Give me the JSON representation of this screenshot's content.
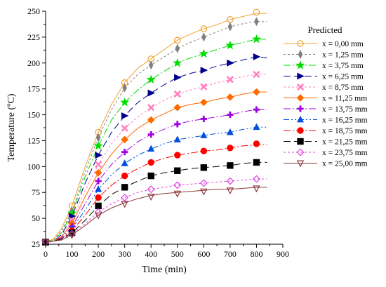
{
  "chart_data": {
    "type": "line",
    "xlabel": "Time (min)",
    "ylabel": "Temperature (ºC)",
    "xlim": [
      0,
      900
    ],
    "ylim": [
      25,
      250
    ],
    "xticks": [
      0,
      100,
      200,
      300,
      400,
      500,
      600,
      700,
      800,
      900
    ],
    "yticks": [
      25,
      50,
      75,
      100,
      125,
      150,
      175,
      200,
      225,
      250
    ],
    "grid": false,
    "legend_title": "Predicted",
    "legend_position": "right",
    "series": [
      {
        "name": "x = 0,00 mm",
        "color": "#f0a030",
        "marker": "circle-open",
        "dash": "",
        "x": [
          0,
          30,
          60,
          100,
          150,
          200,
          250,
          300,
          350,
          400,
          450,
          500,
          550,
          600,
          650,
          700,
          750,
          800,
          840
        ],
        "y": [
          27,
          30,
          40,
          62,
          100,
          133,
          160,
          181,
          195,
          204,
          213,
          222,
          228,
          233,
          237,
          242,
          245,
          248,
          248
        ],
        "marker_x": [
          0,
          100,
          200,
          300,
          400,
          500,
          600,
          700,
          800
        ],
        "marker_y": [
          27,
          62,
          133,
          181,
          204,
          222,
          233,
          242,
          249
        ]
      },
      {
        "name": "x = 1,25 mm",
        "color": "#808080",
        "marker": "diamond-gray",
        "dash": "3,3",
        "x": [
          0,
          30,
          60,
          100,
          150,
          200,
          250,
          300,
          350,
          400,
          450,
          500,
          550,
          600,
          650,
          700,
          750,
          800,
          840
        ],
        "y": [
          27,
          29,
          38,
          57,
          95,
          128,
          155,
          176,
          189,
          198,
          206,
          214,
          220,
          225,
          230,
          235,
          238,
          240,
          240
        ],
        "marker_x": [
          0,
          100,
          200,
          300,
          400,
          500,
          600,
          700,
          800
        ],
        "marker_y": [
          27,
          57,
          128,
          176,
          198,
          214,
          225,
          235,
          240
        ]
      },
      {
        "name": "x = 3,75 mm",
        "color": "#00dd00",
        "marker": "star-green",
        "dash": "10,3,2,3",
        "x": [
          0,
          30,
          60,
          100,
          150,
          200,
          250,
          300,
          350,
          400,
          450,
          500,
          550,
          600,
          650,
          700,
          750,
          800,
          840
        ],
        "y": [
          27,
          29,
          36,
          55,
          90,
          120,
          145,
          162,
          174,
          184,
          192,
          200,
          205,
          209,
          213,
          217,
          220,
          223,
          223
        ],
        "marker_x": [
          0,
          100,
          200,
          300,
          400,
          500,
          600,
          700,
          800
        ],
        "marker_y": [
          27,
          55,
          120,
          162,
          184,
          200,
          209,
          217,
          223
        ]
      },
      {
        "name": "x = 6,25 mm",
        "color": "#00008b",
        "marker": "triangle-right",
        "dash": "10,5",
        "x": [
          0,
          30,
          60,
          100,
          150,
          200,
          250,
          300,
          350,
          400,
          450,
          500,
          550,
          600,
          650,
          700,
          750,
          800,
          840
        ],
        "y": [
          27,
          28,
          34,
          52,
          84,
          111,
          133,
          149,
          162,
          171,
          179,
          186,
          190,
          193,
          197,
          200,
          203,
          206,
          205
        ],
        "marker_x": [
          0,
          100,
          200,
          300,
          400,
          500,
          600,
          700,
          800
        ],
        "marker_y": [
          27,
          52,
          111,
          149,
          171,
          186,
          193,
          200,
          206
        ]
      },
      {
        "name": "x = 8,75 mm",
        "color": "#ff80c0",
        "marker": "x-pink",
        "dash": "3,3",
        "x": [
          0,
          30,
          60,
          100,
          150,
          200,
          250,
          300,
          350,
          400,
          450,
          500,
          550,
          600,
          650,
          700,
          750,
          800,
          840
        ],
        "y": [
          27,
          28,
          33,
          48,
          77,
          102,
          122,
          137,
          148,
          157,
          164,
          170,
          174,
          177,
          181,
          184,
          187,
          189,
          189
        ],
        "marker_x": [
          0,
          100,
          200,
          300,
          400,
          500,
          600,
          700,
          800
        ],
        "marker_y": [
          27,
          48,
          102,
          137,
          157,
          170,
          177,
          184,
          189
        ]
      },
      {
        "name": "x = 11,25 mm",
        "color": "#ff6a00",
        "marker": "diamond-orange",
        "dash": "",
        "x": [
          0,
          30,
          60,
          100,
          150,
          200,
          250,
          300,
          350,
          400,
          450,
          500,
          550,
          600,
          650,
          700,
          750,
          800,
          840
        ],
        "y": [
          27,
          28,
          32,
          45,
          71,
          94,
          112,
          126,
          137,
          145,
          151,
          157,
          160,
          162,
          165,
          167,
          170,
          172,
          172
        ],
        "marker_x": [
          0,
          100,
          200,
          300,
          400,
          500,
          600,
          700,
          800
        ],
        "marker_y": [
          27,
          45,
          94,
          126,
          145,
          157,
          162,
          167,
          172
        ]
      },
      {
        "name": "x = 13,75 mm",
        "color": "#a000e0",
        "marker": "plus-purple",
        "dash": "10,3,2,3",
        "x": [
          0,
          30,
          60,
          100,
          150,
          200,
          250,
          300,
          350,
          400,
          450,
          500,
          550,
          600,
          650,
          700,
          750,
          800,
          840
        ],
        "y": [
          27,
          28,
          31,
          42,
          64,
          86,
          102,
          114,
          124,
          131,
          136,
          141,
          144,
          146,
          148,
          150,
          153,
          155,
          155
        ],
        "marker_x": [
          0,
          100,
          200,
          300,
          400,
          500,
          600,
          700,
          800
        ],
        "marker_y": [
          27,
          42,
          86,
          114,
          131,
          141,
          146,
          150,
          155
        ]
      },
      {
        "name": "x = 16,25 mm",
        "color": "#0050e0",
        "marker": "triangle-up",
        "dash": "8,3,2,3,2,3",
        "x": [
          0,
          30,
          60,
          100,
          150,
          200,
          250,
          300,
          350,
          400,
          450,
          500,
          550,
          600,
          650,
          700,
          750,
          800,
          840
        ],
        "y": [
          27,
          28,
          30,
          40,
          58,
          78,
          92,
          103,
          111,
          117,
          122,
          126,
          128,
          130,
          132,
          133,
          136,
          138,
          138
        ],
        "marker_x": [
          0,
          100,
          200,
          300,
          400,
          500,
          600,
          700,
          800
        ],
        "marker_y": [
          27,
          40,
          78,
          103,
          117,
          126,
          130,
          133,
          138
        ]
      },
      {
        "name": "x = 18,75 mm",
        "color": "#ff0000",
        "marker": "circle-red",
        "dash": "10,3,2,3",
        "x": [
          0,
          30,
          60,
          100,
          150,
          200,
          250,
          300,
          350,
          400,
          450,
          500,
          550,
          600,
          650,
          700,
          750,
          800,
          840
        ],
        "y": [
          27,
          28,
          30,
          38,
          53,
          70,
          82,
          91,
          98,
          104,
          108,
          111,
          113,
          115,
          116,
          118,
          120,
          121,
          121
        ],
        "marker_x": [
          0,
          100,
          200,
          300,
          400,
          500,
          600,
          700,
          800
        ],
        "marker_y": [
          27,
          38,
          70,
          91,
          104,
          111,
          115,
          118,
          122
        ]
      },
      {
        "name": "x = 21,25 mm",
        "color": "#000000",
        "marker": "square-black",
        "dash": "10,5",
        "x": [
          0,
          30,
          60,
          100,
          150,
          200,
          250,
          300,
          350,
          400,
          450,
          500,
          550,
          600,
          650,
          700,
          750,
          800,
          840
        ],
        "y": [
          27,
          28,
          30,
          36,
          48,
          62,
          73,
          80,
          86,
          91,
          94,
          96,
          98,
          99,
          100,
          101,
          103,
          104,
          104
        ],
        "marker_x": [
          0,
          100,
          200,
          300,
          400,
          500,
          600,
          700,
          800
        ],
        "marker_y": [
          27,
          36,
          62,
          80,
          91,
          96,
          99,
          101,
          104
        ]
      },
      {
        "name": "x = 23,75 mm",
        "color": "#e040e0",
        "marker": "diamond-open",
        "dash": "3,3",
        "x": [
          0,
          30,
          60,
          100,
          150,
          200,
          250,
          300,
          350,
          400,
          450,
          500,
          550,
          600,
          650,
          700,
          750,
          800,
          840
        ],
        "y": [
          27,
          28,
          29,
          35,
          45,
          56,
          64,
          70,
          75,
          78,
          80,
          82,
          83,
          84,
          85,
          86,
          87,
          88,
          88
        ],
        "marker_x": [
          0,
          100,
          200,
          300,
          400,
          500,
          600,
          700,
          800
        ],
        "marker_y": [
          27,
          35,
          56,
          70,
          78,
          82,
          84,
          86,
          88
        ]
      },
      {
        "name": "x = 25,00 mm",
        "color": "#8b3a3a",
        "marker": "triangle-down-open",
        "dash": "",
        "x": [
          0,
          30,
          60,
          100,
          150,
          200,
          250,
          300,
          350,
          400,
          450,
          500,
          550,
          600,
          650,
          700,
          750,
          800,
          840
        ],
        "y": [
          27,
          28,
          29,
          34,
          43,
          53,
          60,
          65,
          69,
          72,
          74,
          75,
          76,
          77,
          78,
          78,
          79,
          80,
          80
        ],
        "marker_x": [
          0,
          100,
          200,
          300,
          400,
          500,
          600,
          700,
          800
        ],
        "marker_y": [
          27,
          34,
          53,
          64,
          71,
          74,
          76,
          77,
          79
        ]
      }
    ]
  }
}
